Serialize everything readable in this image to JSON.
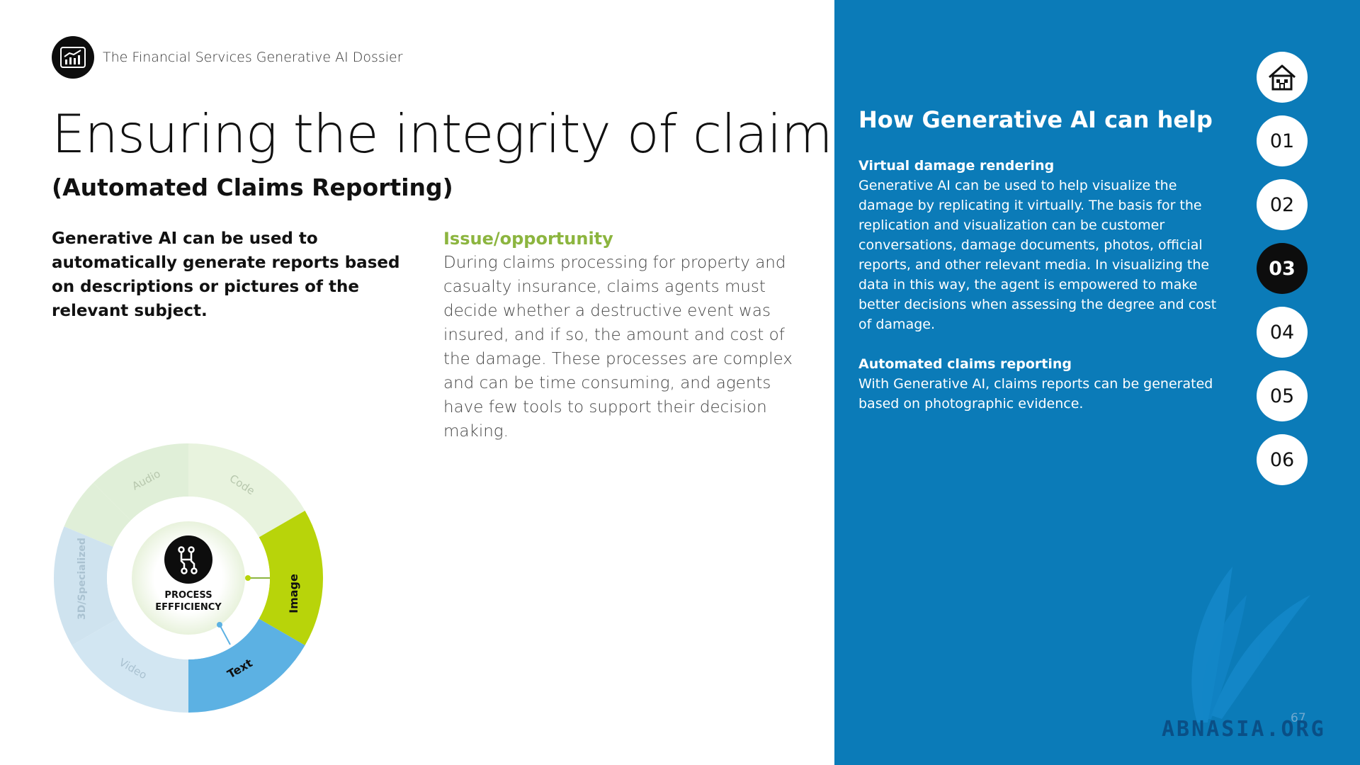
{
  "header": {
    "title": "The Financial Services Generative AI Dossier",
    "logo_icon": "chart-icon"
  },
  "title": "Ensuring the integrity of claims",
  "subtitle": "(Automated Claims Reporting)",
  "lead": "Generative AI can be used to automatically generate reports based on descriptions or pictures of the relevant subject.",
  "issue": {
    "heading": "Issue/opportunity",
    "body": "During claims processing for property and casualty insurance, claims agents must decide whether a destructive event was insured, and if so, the amount and cost of the damage. These processes are complex and can be time consuming, and agents have few tools to support their decision making."
  },
  "wheel": {
    "center_line1": "PROCESS",
    "center_line2": "EFFFICIENCY",
    "segments": [
      "Audio",
      "Code",
      "Image",
      "Text",
      "Video",
      "3D/Specialized"
    ],
    "active": [
      "Image",
      "Text"
    ],
    "colors": {
      "image": "#b8d40a",
      "text": "#5cb1e3",
      "inactive_green": "#e2f1db",
      "inactive_blue": "#d4e8f4"
    }
  },
  "help": {
    "title": "How Generative AI can help",
    "items": [
      {
        "heading": "Virtual damage rendering",
        "body": "Generative AI can be used to help visualize the damage by replicating it virtually. The basis for the replication and visualization can be customer conversations, damage documents, photos, official reports, and other relevant media. In visualizing the data in this way, the agent is empowered to make better decisions when assessing the degree and cost of damage."
      },
      {
        "heading": "Automated claims reporting",
        "body": "With Generative AI, claims reports can be generated based on photographic evidence."
      }
    ]
  },
  "nav": {
    "home_icon": "home-icon",
    "items": [
      "01",
      "02",
      "03",
      "04",
      "05",
      "06"
    ],
    "active": "03"
  },
  "page_number": "67",
  "watermark": "ABNASIA.ORG",
  "colors": {
    "panel_blue": "#0b7bb8",
    "accent_green": "#8cb53f"
  }
}
